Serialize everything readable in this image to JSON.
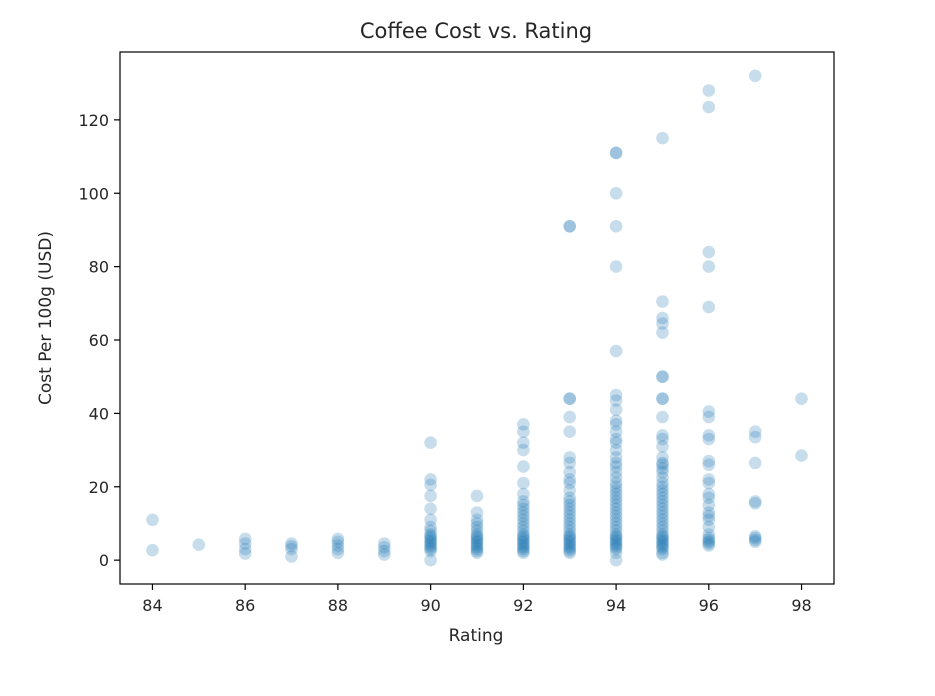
{
  "chart_data": {
    "type": "scatter",
    "title": "Coffee Cost vs. Rating",
    "xlabel": "Rating",
    "ylabel": "Cost Per 100g (USD)",
    "xlim": [
      83.3,
      98.7
    ],
    "ylim": [
      -6.5,
      138.5
    ],
    "xticks": [
      84,
      86,
      88,
      90,
      92,
      94,
      96,
      98
    ],
    "yticks": [
      0,
      20,
      40,
      60,
      80,
      100,
      120
    ],
    "grid": false,
    "marker_color": "#1f77b4",
    "marker_alpha": 0.25,
    "series": [
      {
        "points": [
          [
            84,
            11
          ],
          [
            84,
            2.7
          ],
          [
            85,
            4.2
          ],
          [
            86,
            5.8
          ],
          [
            86,
            4.5
          ],
          [
            86,
            3
          ],
          [
            86,
            1.8
          ],
          [
            87,
            4.5
          ],
          [
            87,
            3.8
          ],
          [
            87,
            3
          ],
          [
            87,
            1
          ],
          [
            88,
            5.8
          ],
          [
            88,
            5
          ],
          [
            88,
            4
          ],
          [
            88,
            3
          ],
          [
            88,
            2
          ],
          [
            89,
            4.5
          ],
          [
            89,
            3.5
          ],
          [
            89,
            2.5
          ],
          [
            89,
            1.5
          ],
          [
            90,
            32
          ],
          [
            90,
            22
          ],
          [
            90,
            20.5
          ],
          [
            90,
            17.5
          ],
          [
            90,
            14
          ],
          [
            90,
            11
          ],
          [
            90,
            9
          ],
          [
            90,
            8
          ],
          [
            90,
            7
          ],
          [
            90,
            6.5
          ],
          [
            90,
            6
          ],
          [
            90,
            5.5
          ],
          [
            90,
            5
          ],
          [
            90,
            4.5
          ],
          [
            90,
            4
          ],
          [
            90,
            3.5
          ],
          [
            90,
            3
          ],
          [
            90,
            2.5
          ],
          [
            90,
            0
          ],
          [
            91,
            17.5
          ],
          [
            91,
            13
          ],
          [
            91,
            11
          ],
          [
            91,
            10
          ],
          [
            91,
            9
          ],
          [
            91,
            8
          ],
          [
            91,
            7
          ],
          [
            91,
            6.5
          ],
          [
            91,
            6
          ],
          [
            91,
            5.5
          ],
          [
            91,
            5
          ],
          [
            91,
            4.5
          ],
          [
            91,
            4
          ],
          [
            91,
            3.5
          ],
          [
            91,
            3
          ],
          [
            91,
            2.5
          ],
          [
            91,
            2
          ],
          [
            92,
            37
          ],
          [
            92,
            35
          ],
          [
            92,
            32
          ],
          [
            92,
            30
          ],
          [
            92,
            25.5
          ],
          [
            92,
            21
          ],
          [
            92,
            18
          ],
          [
            92,
            16
          ],
          [
            92,
            15
          ],
          [
            92,
            14
          ],
          [
            92,
            13
          ],
          [
            92,
            12
          ],
          [
            92,
            11
          ],
          [
            92,
            10
          ],
          [
            92,
            9
          ],
          [
            92,
            8
          ],
          [
            92,
            7
          ],
          [
            92,
            6.5
          ],
          [
            92,
            6
          ],
          [
            92,
            5.5
          ],
          [
            92,
            5
          ],
          [
            92,
            4.5
          ],
          [
            92,
            4
          ],
          [
            92,
            3.5
          ],
          [
            92,
            3
          ],
          [
            92,
            2.5
          ],
          [
            92,
            2
          ],
          [
            93,
            91
          ],
          [
            93,
            91
          ],
          [
            93,
            44
          ],
          [
            93,
            44
          ],
          [
            93,
            39
          ],
          [
            93,
            35
          ],
          [
            93,
            28
          ],
          [
            93,
            26.5
          ],
          [
            93,
            24
          ],
          [
            93,
            22
          ],
          [
            93,
            21
          ],
          [
            93,
            19
          ],
          [
            93,
            17
          ],
          [
            93,
            16
          ],
          [
            93,
            15
          ],
          [
            93,
            14
          ],
          [
            93,
            13
          ],
          [
            93,
            12
          ],
          [
            93,
            11
          ],
          [
            93,
            10
          ],
          [
            93,
            9
          ],
          [
            93,
            8
          ],
          [
            93,
            7
          ],
          [
            93,
            6.5
          ],
          [
            93,
            6
          ],
          [
            93,
            5.5
          ],
          [
            93,
            5
          ],
          [
            93,
            4.5
          ],
          [
            93,
            4
          ],
          [
            93,
            3.5
          ],
          [
            93,
            3
          ],
          [
            93,
            2.5
          ],
          [
            93,
            2
          ],
          [
            94,
            111
          ],
          [
            94,
            111
          ],
          [
            94,
            100
          ],
          [
            94,
            91
          ],
          [
            94,
            80
          ],
          [
            94,
            57
          ],
          [
            94,
            45
          ],
          [
            94,
            43.5
          ],
          [
            94,
            41
          ],
          [
            94,
            38
          ],
          [
            94,
            37
          ],
          [
            94,
            35
          ],
          [
            94,
            33
          ],
          [
            94,
            32
          ],
          [
            94,
            30
          ],
          [
            94,
            28
          ],
          [
            94,
            26.5
          ],
          [
            94,
            25.5
          ],
          [
            94,
            24
          ],
          [
            94,
            22.5
          ],
          [
            94,
            21
          ],
          [
            94,
            20
          ],
          [
            94,
            19
          ],
          [
            94,
            18
          ],
          [
            94,
            17
          ],
          [
            94,
            16
          ],
          [
            94,
            15
          ],
          [
            94,
            14
          ],
          [
            94,
            13
          ],
          [
            94,
            12
          ],
          [
            94,
            11
          ],
          [
            94,
            10
          ],
          [
            94,
            9
          ],
          [
            94,
            8
          ],
          [
            94,
            7
          ],
          [
            94,
            6.5
          ],
          [
            94,
            6
          ],
          [
            94,
            5.5
          ],
          [
            94,
            5
          ],
          [
            94,
            4.5
          ],
          [
            94,
            4
          ],
          [
            94,
            3.5
          ],
          [
            94,
            3
          ],
          [
            94,
            2
          ],
          [
            94,
            0
          ],
          [
            95,
            115
          ],
          [
            95,
            70.5
          ],
          [
            95,
            66
          ],
          [
            95,
            64.5
          ],
          [
            95,
            62
          ],
          [
            95,
            50
          ],
          [
            95,
            50
          ],
          [
            95,
            44
          ],
          [
            95,
            44
          ],
          [
            95,
            39
          ],
          [
            95,
            34
          ],
          [
            95,
            33
          ],
          [
            95,
            31
          ],
          [
            95,
            28
          ],
          [
            95,
            26.5
          ],
          [
            95,
            26
          ],
          [
            95,
            25
          ],
          [
            95,
            24
          ],
          [
            95,
            22.5
          ],
          [
            95,
            21
          ],
          [
            95,
            20
          ],
          [
            95,
            19
          ],
          [
            95,
            18
          ],
          [
            95,
            17
          ],
          [
            95,
            16
          ],
          [
            95,
            15
          ],
          [
            95,
            14
          ],
          [
            95,
            13
          ],
          [
            95,
            12
          ],
          [
            95,
            11
          ],
          [
            95,
            10
          ],
          [
            95,
            9
          ],
          [
            95,
            8
          ],
          [
            95,
            7
          ],
          [
            95,
            6.5
          ],
          [
            95,
            6
          ],
          [
            95,
            5.5
          ],
          [
            95,
            5
          ],
          [
            95,
            4.5
          ],
          [
            95,
            4
          ],
          [
            95,
            3.5
          ],
          [
            95,
            3
          ],
          [
            95,
            2
          ],
          [
            95,
            1.5
          ],
          [
            96,
            128
          ],
          [
            96,
            123.5
          ],
          [
            96,
            84
          ],
          [
            96,
            80
          ],
          [
            96,
            69
          ],
          [
            96,
            40.5
          ],
          [
            96,
            39
          ],
          [
            96,
            34
          ],
          [
            96,
            33
          ],
          [
            96,
            27
          ],
          [
            96,
            26
          ],
          [
            96,
            22
          ],
          [
            96,
            21
          ],
          [
            96,
            18
          ],
          [
            96,
            17
          ],
          [
            96,
            15
          ],
          [
            96,
            13
          ],
          [
            96,
            12
          ],
          [
            96,
            11
          ],
          [
            96,
            9
          ],
          [
            96,
            7
          ],
          [
            96,
            6
          ],
          [
            96,
            5.5
          ],
          [
            96,
            5
          ],
          [
            96,
            4.5
          ],
          [
            96,
            4
          ],
          [
            97,
            132
          ],
          [
            97,
            35
          ],
          [
            97,
            33.5
          ],
          [
            97,
            26.5
          ],
          [
            97,
            16
          ],
          [
            97,
            15.5
          ],
          [
            97,
            6.5
          ],
          [
            97,
            6
          ],
          [
            97,
            5.5
          ],
          [
            97,
            5
          ],
          [
            98,
            44
          ],
          [
            98,
            28.5
          ]
        ]
      }
    ]
  }
}
